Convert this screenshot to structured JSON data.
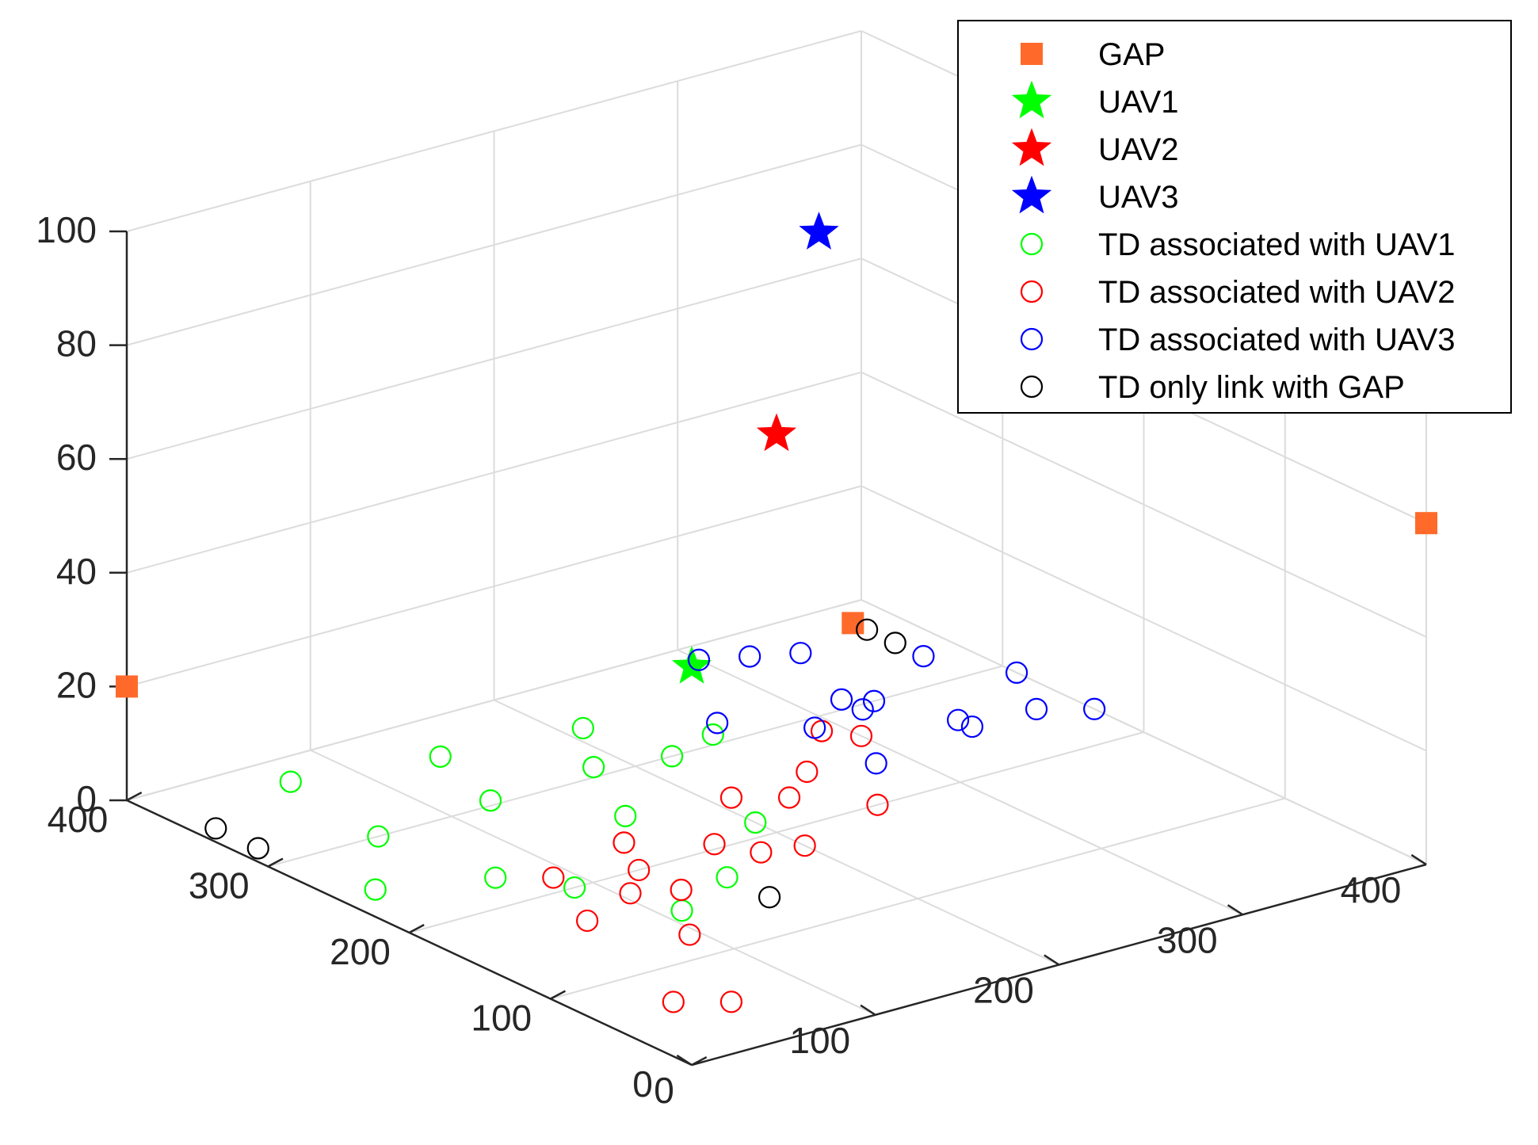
{
  "chart_data": {
    "type": "scatter3d",
    "title": "",
    "xlabel": "",
    "ylabel": "",
    "zlabel": "",
    "xlim": [
      0,
      400
    ],
    "ylim": [
      0,
      400
    ],
    "zlim": [
      0,
      100
    ],
    "x_ticks": [
      0,
      100,
      200,
      300,
      400
    ],
    "y_ticks": [
      0,
      100,
      200,
      300,
      400
    ],
    "z_ticks": [
      0,
      20,
      40,
      60,
      80,
      100
    ],
    "grid": true,
    "legend_position": "top-right",
    "legend": [
      {
        "label": "GAP",
        "marker": "square",
        "color": "#FF6A2B"
      },
      {
        "label": "UAV1",
        "marker": "star",
        "color": "#00FF00"
      },
      {
        "label": "UAV2",
        "marker": "star",
        "color": "#FF0000"
      },
      {
        "label": "UAV3",
        "marker": "star",
        "color": "#0000FF"
      },
      {
        "label": "TD associated with UAV1",
        "marker": "circle",
        "color": "#00FF00"
      },
      {
        "label": "TD associated with UAV2",
        "marker": "circle",
        "color": "#FF0000"
      },
      {
        "label": "TD associated with UAV3",
        "marker": "circle",
        "color": "#0000FF"
      },
      {
        "label": "TD only link with GAP",
        "marker": "circle",
        "color": "#000000"
      }
    ],
    "series": [
      {
        "name": "GAP",
        "points": [
          [
            0,
            400,
            20
          ],
          [
            400,
            0,
            60
          ],
          [
            380,
            380,
            0
          ]
        ]
      },
      {
        "name": "UAV1",
        "points": [
          [
            0,
            0,
            70
          ]
        ]
      },
      {
        "name": "UAV2",
        "points": [
          [
            200,
            200,
            70
          ]
        ]
      },
      {
        "name": "UAV3",
        "points": [
          [
            300,
            300,
            85
          ]
        ]
      },
      {
        "name": "TD associated with UAV1",
        "points": [
          [
            70,
            375,
            0
          ],
          [
            140,
            360,
            0
          ],
          [
            210,
            350,
            0
          ],
          [
            250,
            310,
            0
          ],
          [
            220,
            300,
            0
          ],
          [
            185,
            310,
            0
          ],
          [
            125,
            305,
            0
          ],
          [
            60,
            300,
            0
          ],
          [
            20,
            250,
            0
          ],
          [
            70,
            230,
            0
          ],
          [
            90,
            200,
            0
          ],
          [
            160,
            255,
            0
          ],
          [
            200,
            215,
            0
          ],
          [
            150,
            170,
            0
          ],
          [
            110,
            150,
            0
          ]
        ]
      },
      {
        "name": "TD associated with UAV2",
        "points": [
          [
            40,
            65,
            0
          ],
          [
            60,
            50,
            0
          ],
          [
            70,
            165,
            0
          ],
          [
            95,
            125,
            0
          ],
          [
            105,
            180,
            0
          ],
          [
            90,
            215,
            0
          ],
          [
            125,
            170,
            0
          ],
          [
            125,
            200,
            0
          ],
          [
            140,
            230,
            0
          ],
          [
            170,
            205,
            0
          ],
          [
            180,
            185,
            0
          ],
          [
            200,
            180,
            0
          ],
          [
            210,
            245,
            0
          ],
          [
            230,
            230,
            0
          ],
          [
            255,
            250,
            0
          ],
          [
            255,
            200,
            0
          ],
          [
            290,
            285,
            0
          ],
          [
            300,
            270,
            0
          ]
        ]
      },
      {
        "name": "TD associated with UAV3",
        "points": [
          [
            260,
            320,
            0
          ],
          [
            285,
            240,
            0
          ],
          [
            290,
            290,
            0
          ],
          [
            320,
            295,
            0
          ],
          [
            320,
            310,
            0
          ],
          [
            330,
            300,
            0
          ],
          [
            300,
            385,
            0
          ],
          [
            340,
            365,
            0
          ],
          [
            320,
            375,
            0
          ],
          [
            380,
            330,
            0
          ],
          [
            345,
            260,
            0
          ],
          [
            345,
            250,
            0
          ],
          [
            380,
            250,
            0
          ],
          [
            400,
            235,
            0
          ],
          [
            400,
            290,
            0
          ]
        ]
      },
      {
        "name": "TD only link with GAP",
        "points": [
          [
            10,
            350,
            0
          ],
          [
            10,
            320,
            0
          ],
          [
            380,
            370,
            0
          ],
          [
            380,
            350,
            0
          ],
          [
            150,
            140,
            0
          ]
        ]
      }
    ]
  }
}
